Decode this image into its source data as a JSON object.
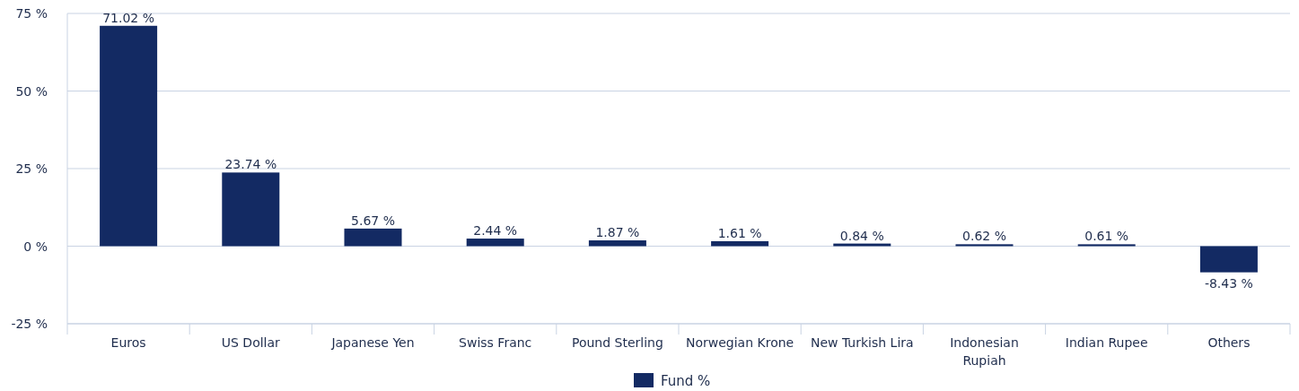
{
  "chart_data": {
    "type": "bar",
    "categories": [
      "Euros",
      "US Dollar",
      "Japanese Yen",
      "Swiss Franc",
      "Pound Sterling",
      "Norwegian Krone",
      "New Turkish Lira",
      "Indonesian Rupiah",
      "Indian Rupee",
      "Others"
    ],
    "series": [
      {
        "name": "Fund %",
        "color": "#132a63",
        "values": [
          71.02,
          23.74,
          5.67,
          2.44,
          1.87,
          1.61,
          0.84,
          0.62,
          0.61,
          -8.43
        ],
        "value_labels": [
          "71.02 %",
          "23.74 %",
          "5.67 %",
          "2.44 %",
          "1.87 %",
          "1.61 %",
          "0.84 %",
          "0.62 %",
          "0.61 %",
          "-8.43 %"
        ]
      }
    ],
    "ylim": [
      -25,
      75
    ],
    "yticks": [
      {
        "value": -25,
        "label": "-25 %"
      },
      {
        "value": 0,
        "label": "0 %"
      },
      {
        "value": 25,
        "label": "25 %"
      },
      {
        "value": 50,
        "label": "50 %"
      },
      {
        "value": 75,
        "label": "75 %"
      }
    ],
    "grid": "y",
    "legend": "bottom"
  }
}
